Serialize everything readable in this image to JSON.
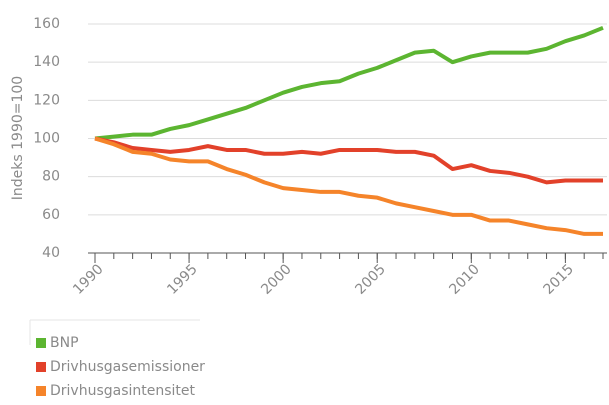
{
  "chart_data": {
    "type": "line",
    "y_label": "Indeks 1990=100",
    "x": [
      1990,
      1991,
      1992,
      1993,
      1994,
      1995,
      1996,
      1997,
      1998,
      1999,
      2000,
      2001,
      2002,
      2003,
      2004,
      2005,
      2006,
      2007,
      2008,
      2009,
      2010,
      2011,
      2012,
      2013,
      2014,
      2015,
      2016,
      2017
    ],
    "series": [
      {
        "name": "BNP",
        "color": "#5cb531",
        "values": [
          100,
          101,
          102,
          102,
          105,
          107,
          110,
          113,
          116,
          120,
          124,
          127,
          129,
          130,
          134,
          137,
          141,
          145,
          146,
          140,
          143,
          145,
          145,
          145,
          147,
          151,
          154,
          158
        ]
      },
      {
        "name": "Drivhusgasemissioner",
        "color": "#e2412a",
        "values": [
          100,
          98,
          95,
          94,
          93,
          94,
          96,
          94,
          94,
          92,
          92,
          93,
          92,
          94,
          94,
          94,
          93,
          93,
          91,
          84,
          86,
          83,
          82,
          80,
          77,
          78,
          78,
          78
        ]
      },
      {
        "name": "Drivhusgasintensitet",
        "color": "#f5842a",
        "values": [
          100,
          97,
          93,
          92,
          89,
          88,
          88,
          84,
          81,
          77,
          74,
          73,
          72,
          72,
          70,
          69,
          66,
          64,
          62,
          60,
          60,
          57,
          57,
          55,
          53,
          52,
          50,
          50
        ]
      }
    ],
    "xlim": [
      1990,
      2017
    ],
    "xticks": [
      1990,
      1995,
      2000,
      2005,
      2010,
      2015
    ],
    "ylim": [
      40,
      160
    ],
    "yticks": [
      40,
      60,
      80,
      100,
      120,
      140,
      160
    ],
    "grid": true,
    "legend": "bottom"
  }
}
